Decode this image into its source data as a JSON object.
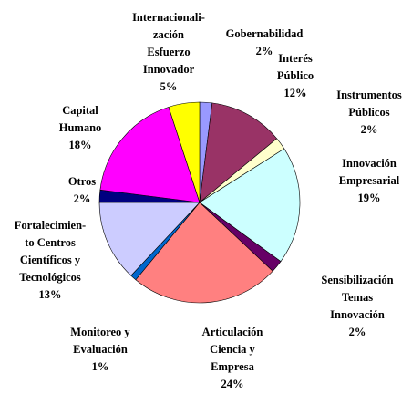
{
  "chart_data": {
    "type": "pie",
    "categories": [
      "Gobernabilidad",
      "Interés\nPúblico",
      "Instrumentos\nPúblicos",
      "Innovación\nEmpresarial",
      "Sensibilización\nTemas\nInnovación",
      "Articulación\nCiencia y\nEmpresa",
      "Monitoreo y\nEvaluación",
      "Fortalecimien-\nto Centros\nCientíficos y\nTecnológicos",
      "Otros",
      "Capital\nHumano",
      "Internacionali-\nzación\nEsfuerzo\nInnovador"
    ],
    "values": [
      2,
      12,
      2,
      19,
      2,
      24,
      1,
      13,
      2,
      18,
      5
    ],
    "value_labels": [
      "2%",
      "12%",
      "2%",
      "19%",
      "2%",
      "24%",
      "1%",
      "13%",
      "2%",
      "18%",
      "5%"
    ],
    "colors": [
      "#9999ff",
      "#993366",
      "#ffffcc",
      "#ccffff",
      "#660066",
      "#ff8080",
      "#0066cc",
      "#ccccff",
      "#000080",
      "#ff00ff",
      "#ffff00"
    ]
  }
}
